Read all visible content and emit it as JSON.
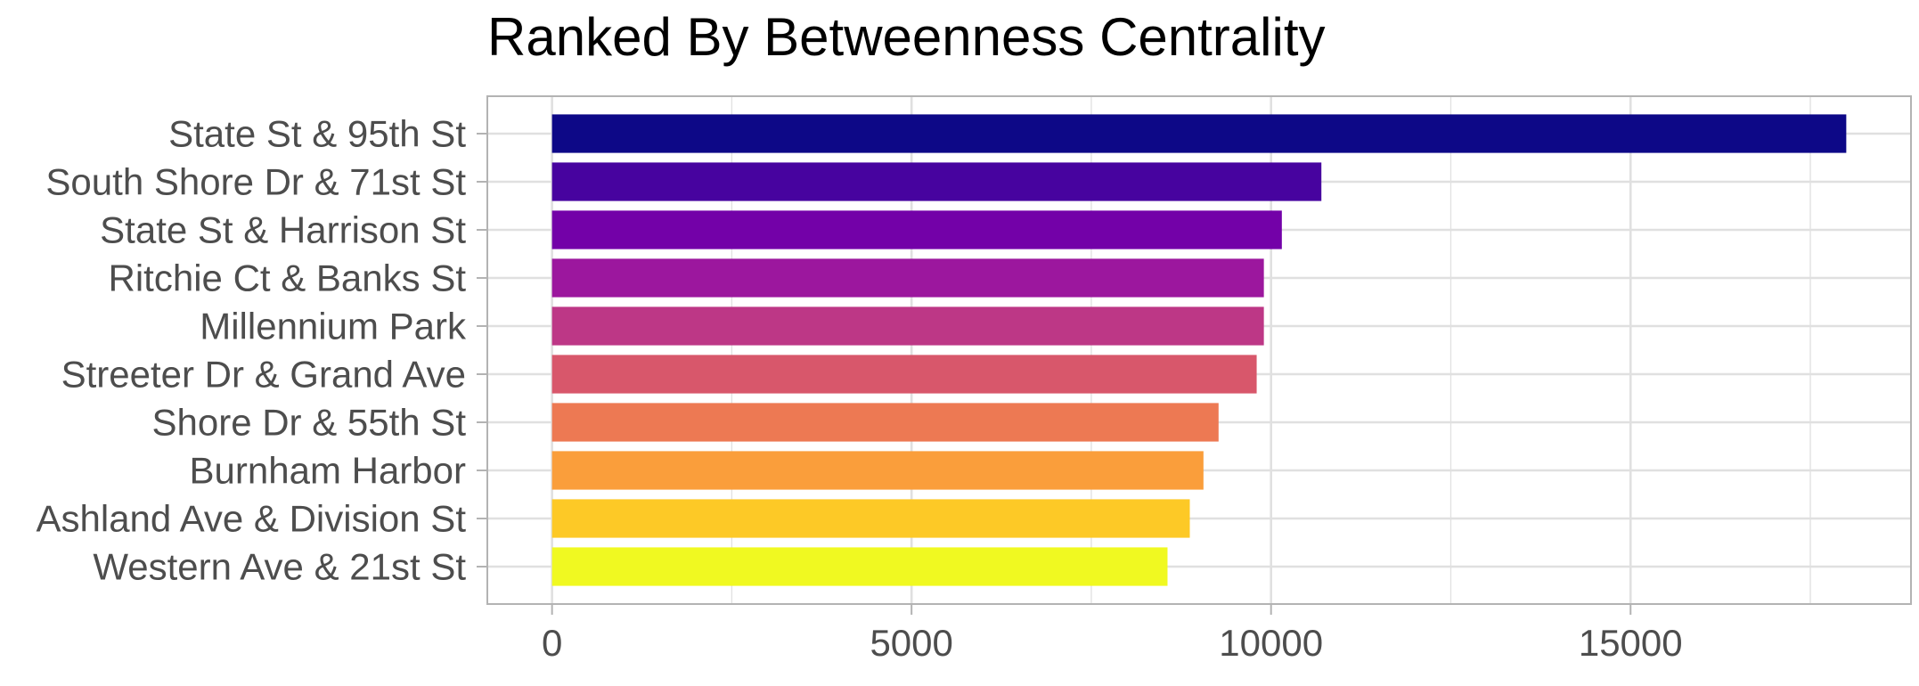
{
  "chart_data": {
    "type": "bar",
    "orientation": "horizontal",
    "title": "Ranked By Betweenness Centrality",
    "xlabel": "",
    "ylabel": "",
    "categories": [
      "State St & 95th St",
      "South Shore Dr & 71st St",
      "State St & Harrison St",
      "Ritchie Ct & Banks St",
      "Millennium Park",
      "Streeter Dr & Grand Ave",
      "Shore Dr & 55th St",
      "Burnham Harbor",
      "Ashland Ave & Division St",
      "Western Ave & 21st St"
    ],
    "values": [
      18000,
      10700,
      10150,
      9900,
      9900,
      9800,
      9270,
      9060,
      8870,
      8560
    ],
    "colors": [
      "#0d0887",
      "#47039f",
      "#7301a8",
      "#9c179e",
      "#bd3786",
      "#d8576b",
      "#ed7953",
      "#fa9e3b",
      "#fdc926",
      "#f0f921"
    ],
    "xlim": [
      -900,
      18900
    ],
    "x_ticks": [
      0,
      5000,
      10000,
      15000
    ],
    "x_tick_labels": [
      "0",
      "5000",
      "10000",
      "15000"
    ],
    "x_minor_ticks": [
      2500,
      7500,
      12500,
      17500
    ],
    "grid": true,
    "legend": "none",
    "panel_border_color": "#b3b3b3",
    "grid_color": "#e0e0e0"
  }
}
